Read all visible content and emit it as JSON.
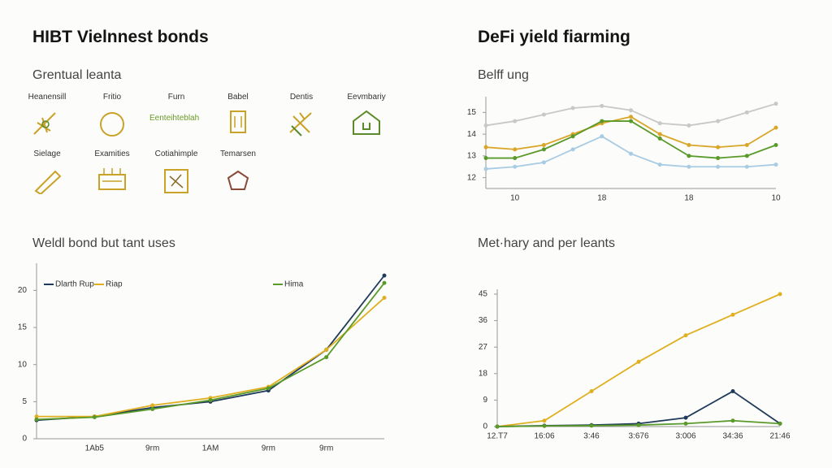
{
  "left_title": "HIBT Vielnnest bonds",
  "right_title": "DeFi yield fiarming",
  "icons": {
    "title": "Grentual leanta",
    "items": [
      "Heanensill",
      "Fritio",
      "Furn",
      "Babel",
      "Dentis",
      "Eevmbariy",
      "Sielage",
      "Examities",
      "Cotiahimple",
      "Temarsen"
    ],
    "sublabel": "Eenteihteblah"
  },
  "chart_data": [
    {
      "type": "line",
      "title": "Belff ung",
      "categories": [
        null,
        "10",
        null,
        null,
        "18",
        null,
        null,
        "18",
        null,
        null,
        "10"
      ],
      "ylim": [
        11.5,
        15.5
      ],
      "yticks": [
        12,
        13,
        14,
        15
      ],
      "series": [
        {
          "color": "#c8c8c8",
          "values": [
            14.4,
            14.6,
            14.9,
            15.2,
            15.3,
            15.1,
            14.5,
            14.4,
            14.6,
            15.0,
            15.4
          ]
        },
        {
          "color": "#d9a62a",
          "values": [
            13.4,
            13.3,
            13.5,
            14.0,
            14.5,
            14.8,
            14.0,
            13.5,
            13.4,
            13.5,
            14.3
          ]
        },
        {
          "color": "#5a9a2a",
          "values": [
            12.9,
            12.9,
            13.3,
            13.9,
            14.6,
            14.6,
            13.8,
            13.0,
            12.9,
            13.0,
            13.5
          ]
        },
        {
          "color": "#a8cce4",
          "values": [
            12.4,
            12.5,
            12.7,
            13.3,
            13.9,
            13.1,
            12.6,
            12.5,
            12.5,
            12.5,
            12.6
          ]
        }
      ]
    },
    {
      "type": "line",
      "title": "Weldl bond but tant uses",
      "categories": [
        null,
        "1Ab5",
        "9rm",
        "1AM",
        "9rm",
        "9rm",
        null
      ],
      "ylim": [
        0,
        23
      ],
      "yticks": [
        0,
        5,
        10,
        15,
        20
      ],
      "series": [
        {
          "name": "Dlarth Rup",
          "color": "#1f3a5a",
          "values": [
            2.5,
            3,
            4.2,
            5,
            6.5,
            12,
            22
          ]
        },
        {
          "name": "Riap",
          "color": "#e0b020",
          "values": [
            3,
            3,
            4.5,
            5.5,
            7,
            12,
            19
          ]
        },
        {
          "name": "Hima",
          "color": "#5a9a2a",
          "values": [
            2.6,
            2.9,
            4,
            5.2,
            6.8,
            11,
            21
          ]
        }
      ]
    },
    {
      "type": "line",
      "title": "Met·hary and per leants",
      "categories": [
        "12.T7",
        "16:06",
        "3:46",
        "3:676",
        "3:006",
        "34:36",
        "21:46"
      ],
      "ylim": [
        0,
        45
      ],
      "yticks": [
        0,
        9,
        18,
        27,
        36,
        45
      ],
      "series": [
        {
          "color": "#e0b020",
          "values": [
            0,
            2,
            12,
            22,
            31,
            38,
            45
          ]
        },
        {
          "color": "#1f3a5a",
          "values": [
            0,
            0.3,
            0.5,
            1,
            3,
            12,
            1
          ]
        },
        {
          "color": "#5a9a2a",
          "values": [
            0,
            0.2,
            0.3,
            0.5,
            1,
            2,
            1
          ]
        }
      ]
    }
  ]
}
